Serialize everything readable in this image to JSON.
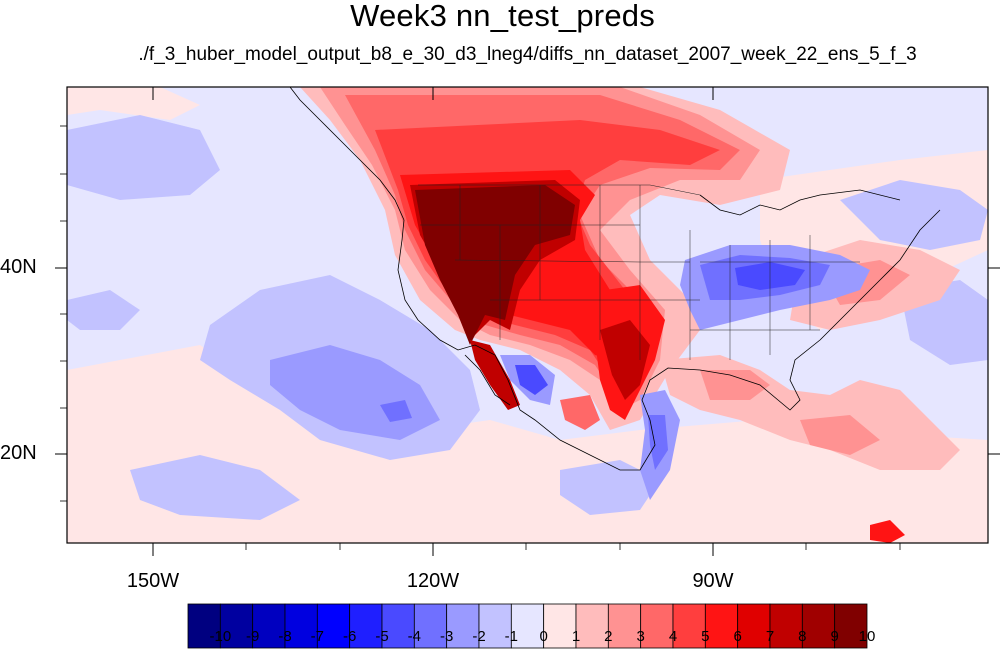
{
  "title": "Week3 nn_test_preds",
  "subtitle": "./f_3_huber_model_output_b8_e_30_d3_lneg4/diffs_nn_dataset_2007_week_22_ens_5_f_3",
  "map": {
    "lat_labels": [
      "40N",
      "20N"
    ],
    "lon_labels": [
      "150W",
      "120W",
      "90W"
    ]
  },
  "colorbar": {
    "labels": [
      "-10",
      "-9",
      "-8",
      "-7",
      "-6",
      "-5",
      "-4",
      "-3",
      "-2",
      "-1",
      "0",
      "1",
      "2",
      "3",
      "4",
      "5",
      "6",
      "7",
      "8",
      "9",
      "10"
    ],
    "colors": [
      "#000080",
      "#0000a0",
      "#0000c0",
      "#0000e0",
      "#0000ff",
      "#1f1fff",
      "#4a4aff",
      "#7070ff",
      "#9a9aff",
      "#c2c2ff",
      "#e6e6ff",
      "#ffe6e6",
      "#ffbcbc",
      "#ff9292",
      "#ff6868",
      "#ff3e3e",
      "#ff1414",
      "#e00000",
      "#c00000",
      "#a00000",
      "#800000"
    ]
  }
}
